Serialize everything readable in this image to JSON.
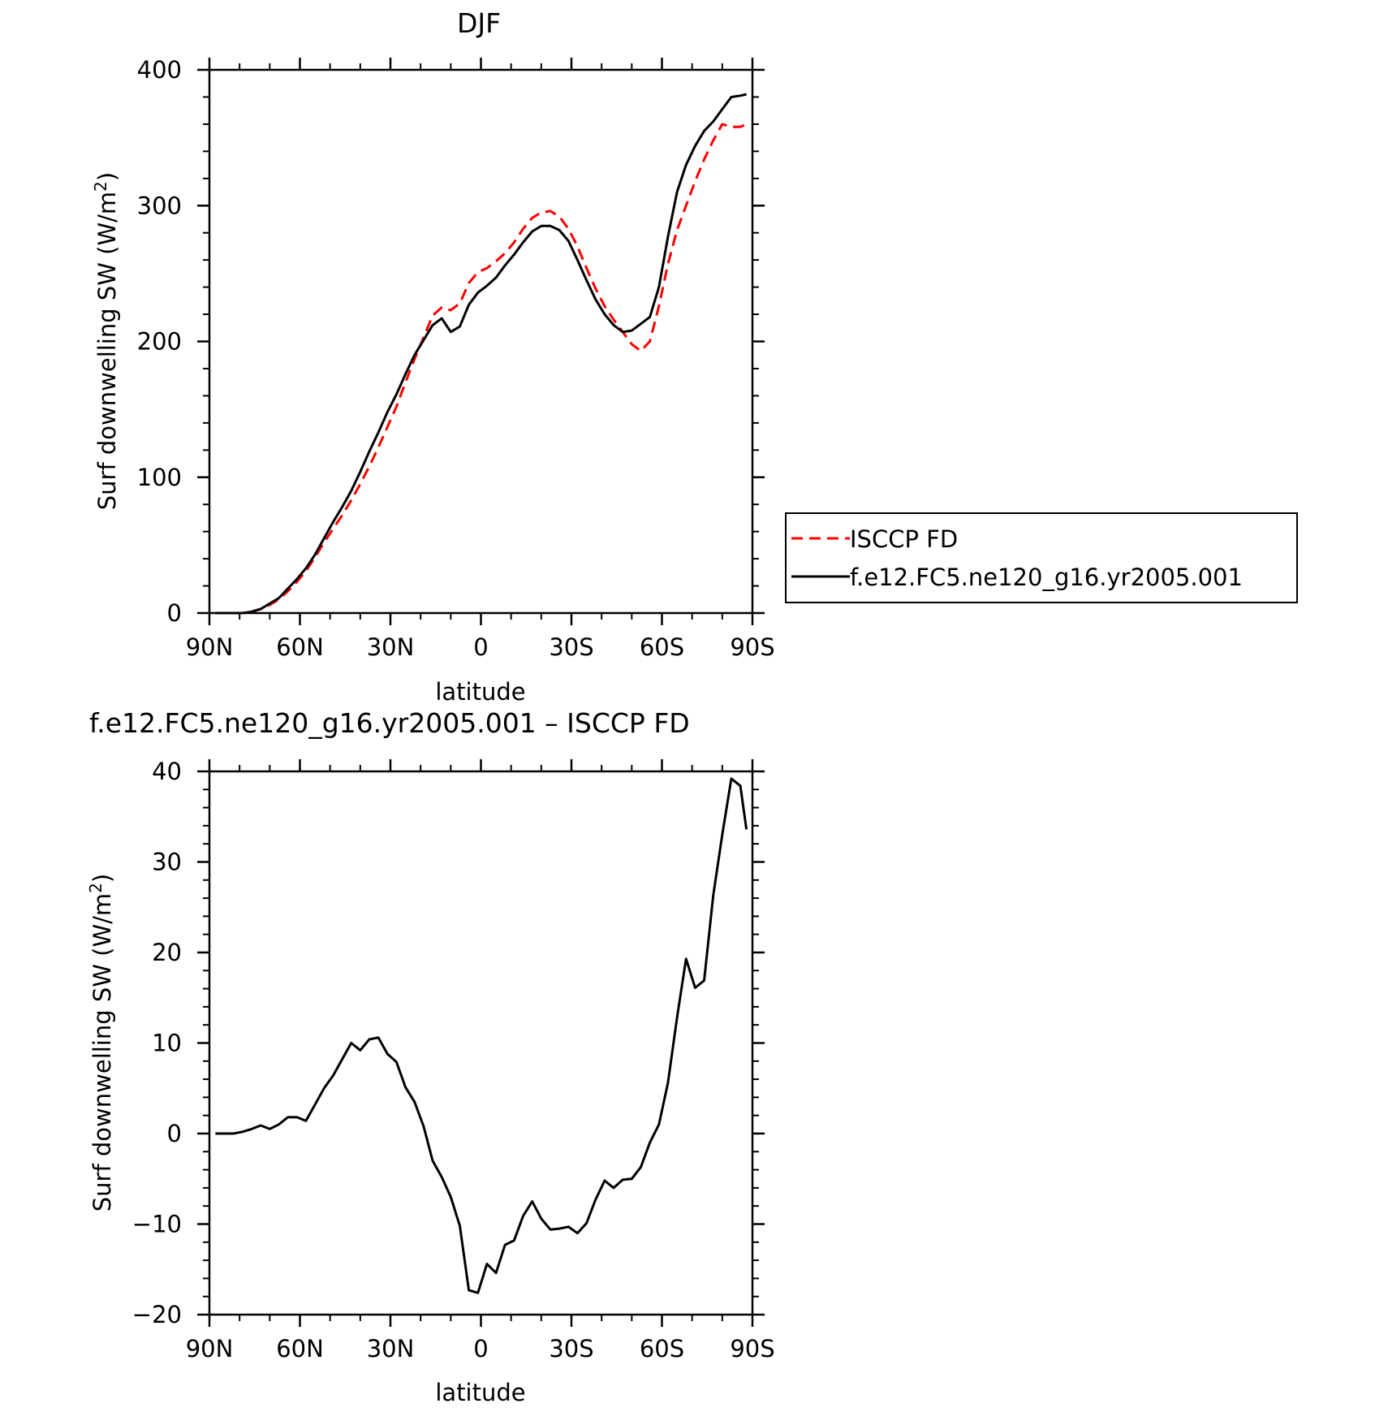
{
  "chart_data": [
    {
      "type": "line",
      "title": "DJF",
      "xlabel": "latitude",
      "ylabel": "Surf downwelling SW (W/m²)",
      "ylabel_main": "Surf downwelling SW (W/m",
      "ylabel_sup": "2",
      "ylabel_close": ")",
      "xlim": [
        -90,
        90
      ],
      "ylim": [
        0,
        400
      ],
      "x_ticks": [
        -90,
        -60,
        -30,
        0,
        30,
        60,
        90
      ],
      "x_tick_labels": [
        "90N",
        "60N",
        "30N",
        "0",
        "30S",
        "60S",
        "90S"
      ],
      "y_ticks": [
        0,
        100,
        200,
        300,
        400
      ],
      "y_tick_labels": [
        "0",
        "100",
        "200",
        "300",
        "400"
      ],
      "legend_position": "right",
      "x": [
        -88,
        -85,
        -82,
        -79,
        -76,
        -73,
        -70,
        -67,
        -64,
        -61,
        -58,
        -55,
        -52,
        -49,
        -46,
        -43,
        -40,
        -37,
        -34,
        -31,
        -28,
        -25,
        -22,
        -19,
        -16,
        -13,
        -10,
        -7,
        -4,
        -1,
        2,
        5,
        8,
        11,
        14,
        17,
        20,
        23,
        26,
        29,
        32,
        35,
        38,
        41,
        44,
        47,
        50,
        53,
        56,
        59,
        62,
        65,
        68,
        71,
        74,
        77,
        80,
        83,
        86,
        88
      ],
      "series": [
        {
          "name": "ISCCP FD",
          "color": "#ff0000",
          "dash": "dashed",
          "values": [
            0,
            0,
            0,
            0,
            1,
            3,
            6,
            10,
            16,
            23,
            31,
            41,
            52,
            62,
            72,
            83,
            95,
            108,
            122,
            137,
            152,
            170,
            187,
            203,
            219,
            225,
            223,
            228,
            243,
            251,
            254,
            259,
            265,
            273,
            283,
            291,
            295,
            296,
            292,
            283,
            270,
            254,
            239,
            226,
            216,
            207,
            198,
            193,
            200,
            226,
            257,
            282,
            300,
            318,
            334,
            348,
            360,
            358,
            358,
            360
          ]
        },
        {
          "name": "f.e12.FC5.ne120_g16.yr2005.001",
          "color": "#000000",
          "dash": "solid",
          "values": [
            0,
            0,
            0,
            0,
            1,
            3,
            7,
            11,
            18,
            25,
            33,
            43,
            55,
            67,
            78,
            90,
            104,
            119,
            133,
            148,
            161,
            176,
            190,
            201,
            212,
            217,
            207,
            211,
            227,
            236,
            241,
            247,
            256,
            264,
            273,
            281,
            285,
            285,
            282,
            274,
            260,
            245,
            231,
            220,
            212,
            207,
            208,
            213,
            218,
            240,
            277,
            310,
            330,
            344,
            355,
            362,
            371,
            380,
            381,
            382
          ]
        }
      ]
    },
    {
      "type": "line",
      "title": "f.e12.FC5.ne120_g16.yr2005.001 – ISCCP FD",
      "xlabel": "latitude",
      "ylabel": "Surf downwelling SW (W/m²)",
      "ylabel_main": "Surf downwelling SW (W/m",
      "ylabel_sup": "2",
      "ylabel_close": ")",
      "xlim": [
        -90,
        90
      ],
      "ylim": [
        -20,
        40
      ],
      "x_ticks": [
        -90,
        -60,
        -30,
        0,
        30,
        60,
        90
      ],
      "x_tick_labels": [
        "90N",
        "60N",
        "30N",
        "0",
        "30S",
        "60S",
        "90S"
      ],
      "y_ticks": [
        -20,
        -10,
        0,
        10,
        20,
        30,
        40
      ],
      "y_tick_labels": [
        "−20",
        "−10",
        "0",
        "10",
        "20",
        "30",
        "40"
      ],
      "x": [
        -88,
        -85,
        -82,
        -79,
        -76,
        -73,
        -70,
        -67,
        -64,
        -61,
        -58,
        -55,
        -52,
        -49,
        -46,
        -43,
        -40,
        -37,
        -34,
        -31,
        -28,
        -25,
        -22,
        -19,
        -16,
        -13,
        -10,
        -7,
        -4,
        -1,
        2,
        5,
        8,
        11,
        14,
        17,
        20,
        23,
        26,
        29,
        32,
        35,
        38,
        41,
        44,
        47,
        50,
        53,
        56,
        59,
        62,
        65,
        68,
        71,
        74,
        77,
        80,
        83,
        86,
        88
      ],
      "series": [
        {
          "name": "",
          "color": "#000000",
          "dash": "solid",
          "values": [
            0,
            0,
            0,
            0.2,
            0.5,
            0.9,
            0.5,
            1.0,
            1.8,
            1.8,
            1.4,
            3.2,
            5.0,
            6.4,
            8.2,
            10.0,
            9.2,
            10.4,
            10.6,
            8.8,
            7.9,
            5.1,
            3.5,
            0.8,
            -3.0,
            -4.8,
            -7.0,
            -10.2,
            -17.3,
            -17.6,
            -14.4,
            -15.4,
            -12.3,
            -11.8,
            -9.1,
            -7.5,
            -9.4,
            -10.6,
            -10.5,
            -10.3,
            -11.0,
            -9.9,
            -7.3,
            -5.2,
            -6.0,
            -5.1,
            -5.0,
            -3.7,
            -1.0,
            1.0,
            5.6,
            12.8,
            19.3,
            16.1,
            16.9,
            26.3,
            33.0,
            39.2,
            38.4,
            33.6
          ]
        }
      ]
    }
  ]
}
